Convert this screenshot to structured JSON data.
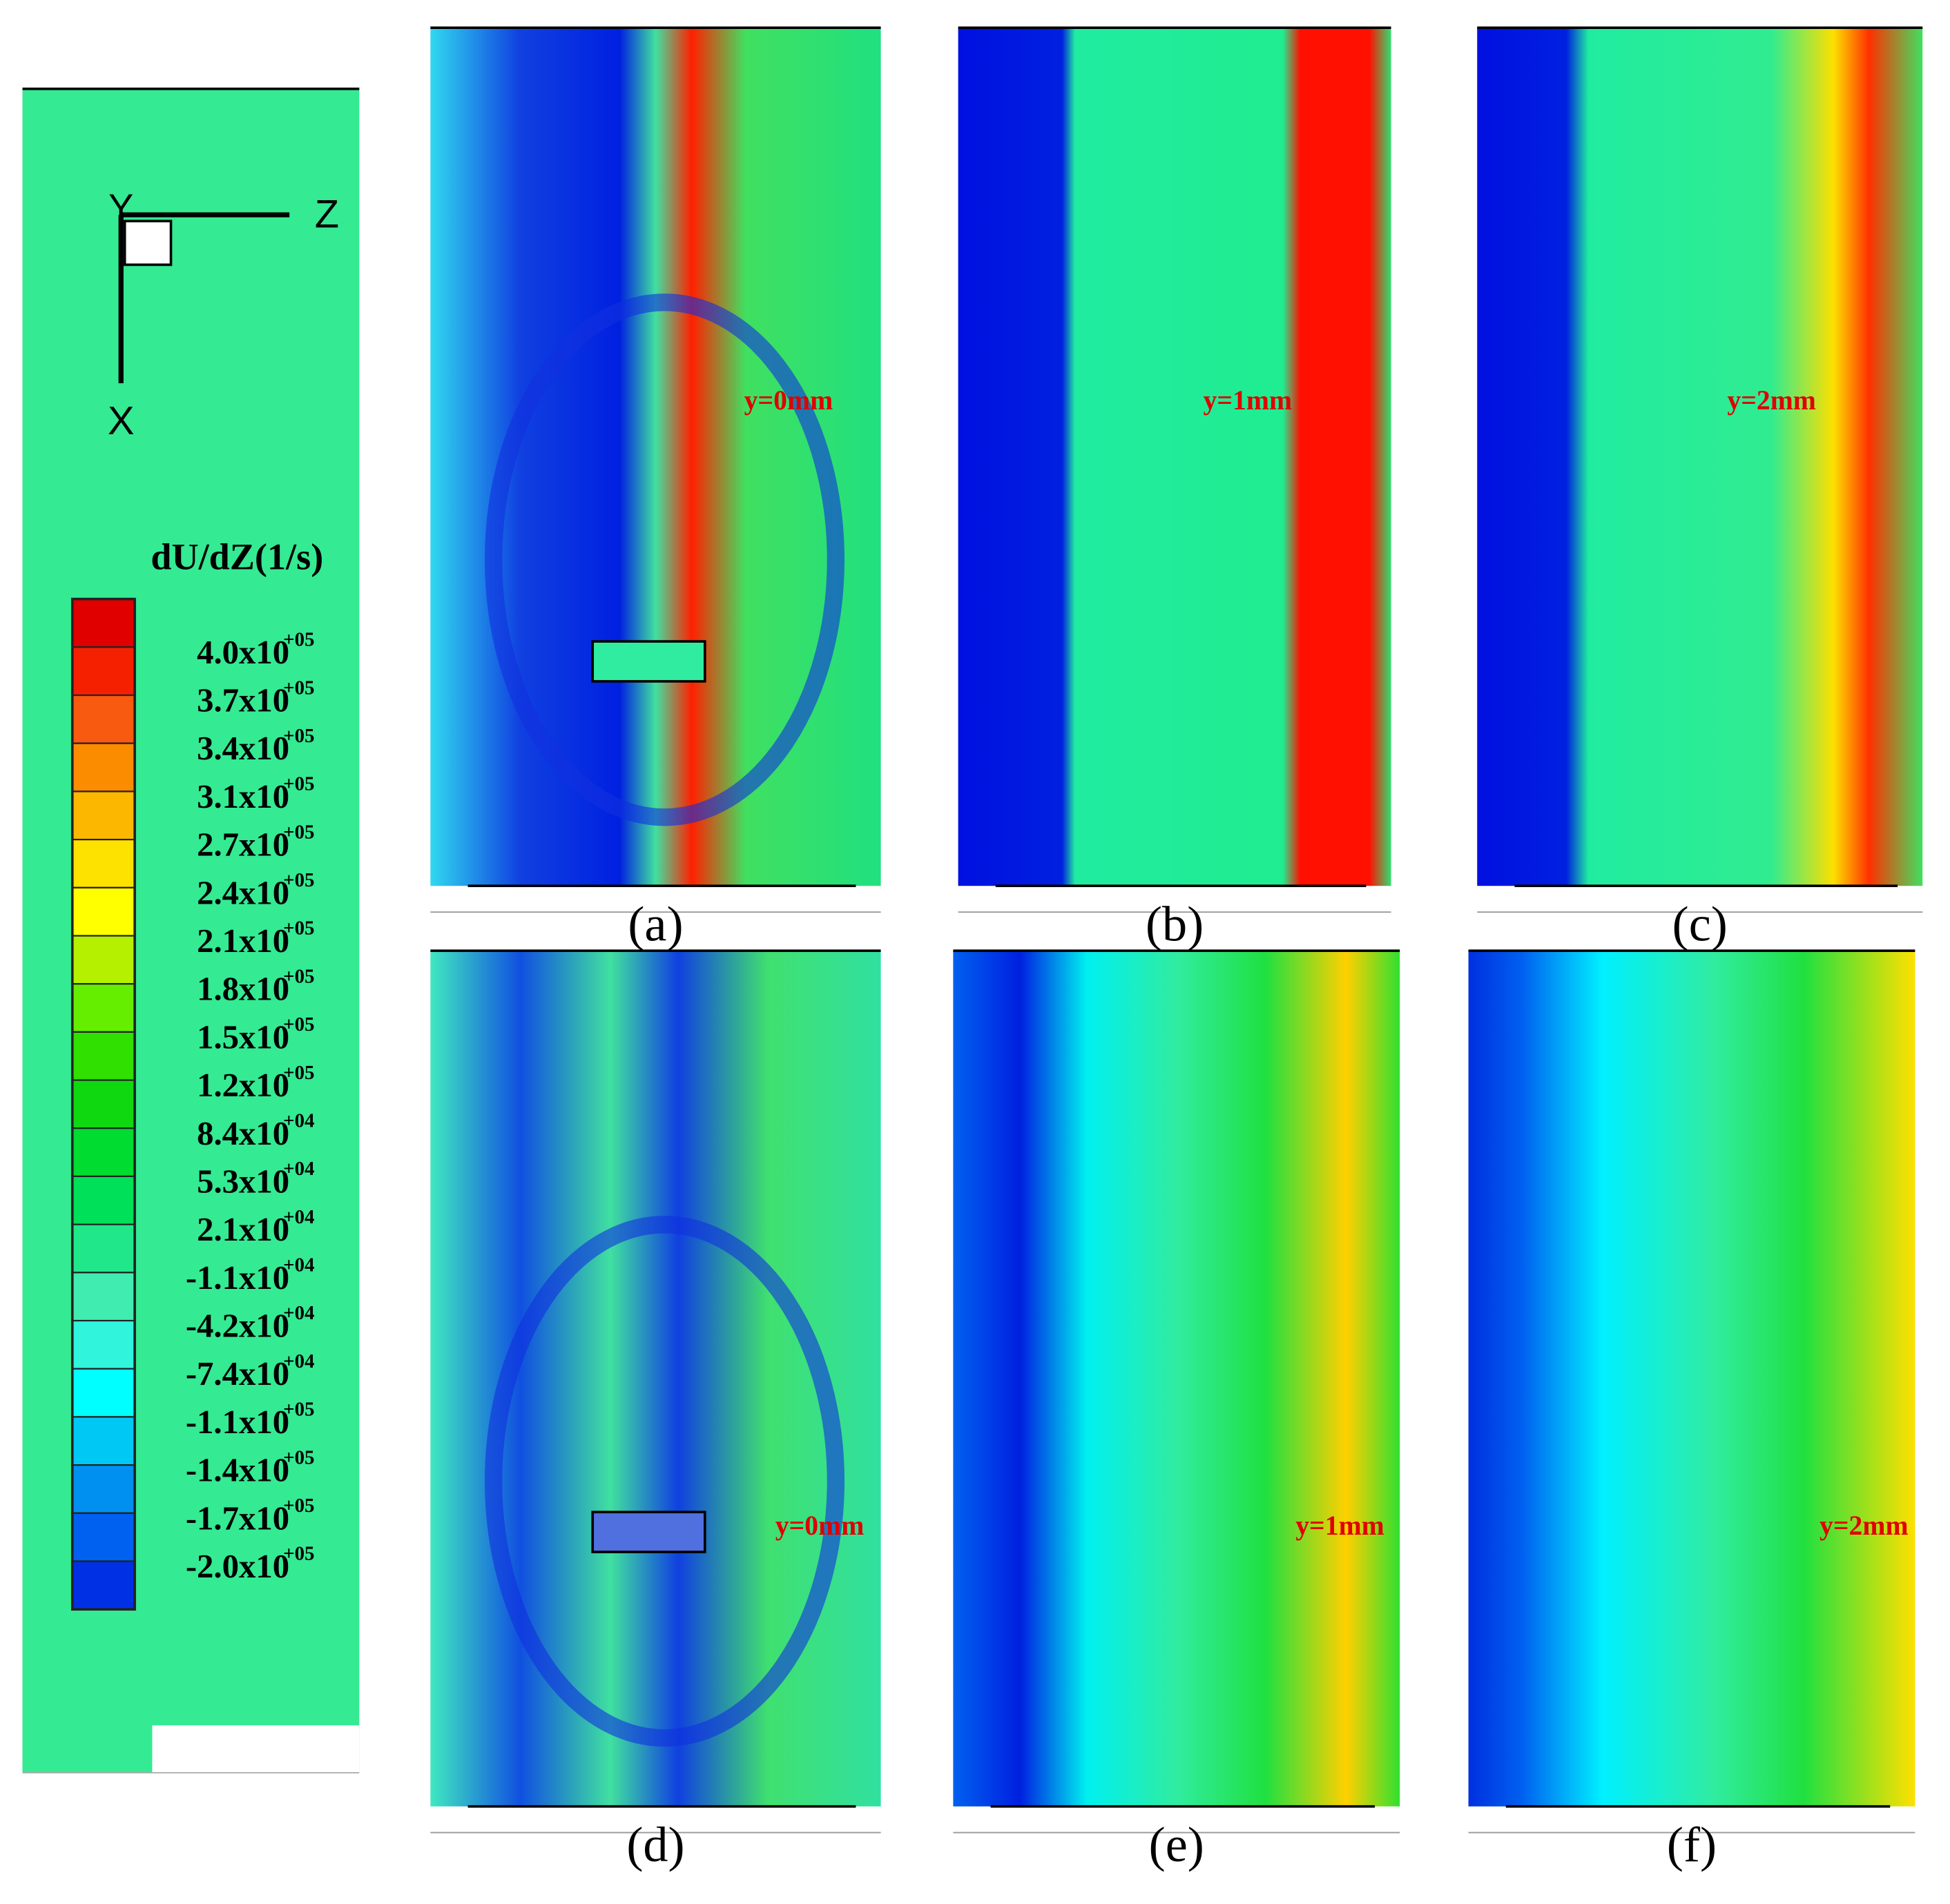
{
  "legend": {
    "title": "dU/dZ(1/s)",
    "colors": [
      "#e00000",
      "#f42000",
      "#f85a10",
      "#fb8c00",
      "#fcb800",
      "#fde200",
      "#ffff00",
      "#b4f000",
      "#66ee00",
      "#30e000",
      "#10d810",
      "#00dc30",
      "#00e058",
      "#20e88a",
      "#40ecb0",
      "#30f4dc",
      "#00ffff",
      "#00c8f4",
      "#0090f0",
      "#0060f0",
      "#0030e4"
    ],
    "levels": [
      {
        "mantissa": "4.0x10",
        "exponent": "+05"
      },
      {
        "mantissa": "3.7x10",
        "exponent": "+05"
      },
      {
        "mantissa": "3.4x10",
        "exponent": "+05"
      },
      {
        "mantissa": "3.1x10",
        "exponent": "+05"
      },
      {
        "mantissa": "2.7x10",
        "exponent": "+05"
      },
      {
        "mantissa": "2.4x10",
        "exponent": "+05"
      },
      {
        "mantissa": "2.1x10",
        "exponent": "+05"
      },
      {
        "mantissa": "1.8x10",
        "exponent": "+05"
      },
      {
        "mantissa": "1.5x10",
        "exponent": "+05"
      },
      {
        "mantissa": "1.2x10",
        "exponent": "+05"
      },
      {
        "mantissa": "8.4x10",
        "exponent": "+04"
      },
      {
        "mantissa": "5.3x10",
        "exponent": "+04"
      },
      {
        "mantissa": "2.1x10",
        "exponent": "+04"
      },
      {
        "mantissa": "-1.1x10",
        "exponent": "+04"
      },
      {
        "mantissa": "-4.2x10",
        "exponent": "+04"
      },
      {
        "mantissa": "-7.4x10",
        "exponent": "+04"
      },
      {
        "mantissa": "-1.1x10",
        "exponent": "+05"
      },
      {
        "mantissa": "-1.4x10",
        "exponent": "+05"
      },
      {
        "mantissa": "-1.7x10",
        "exponent": "+05"
      },
      {
        "mantissa": "-2.0x10",
        "exponent": "+05"
      }
    ]
  },
  "axes": {
    "y": "Y",
    "z": "Z",
    "x": "X"
  },
  "panels": [
    {
      "label": "(a)",
      "annotation": "y=0mm"
    },
    {
      "label": "(b)",
      "annotation": "y=1mm"
    },
    {
      "label": "(c)",
      "annotation": "y=2mm"
    },
    {
      "label": "(d)",
      "annotation": "y=0mm"
    },
    {
      "label": "(e)",
      "annotation": "y=1mm"
    },
    {
      "label": "(f)",
      "annotation": "y=2mm"
    }
  ]
}
